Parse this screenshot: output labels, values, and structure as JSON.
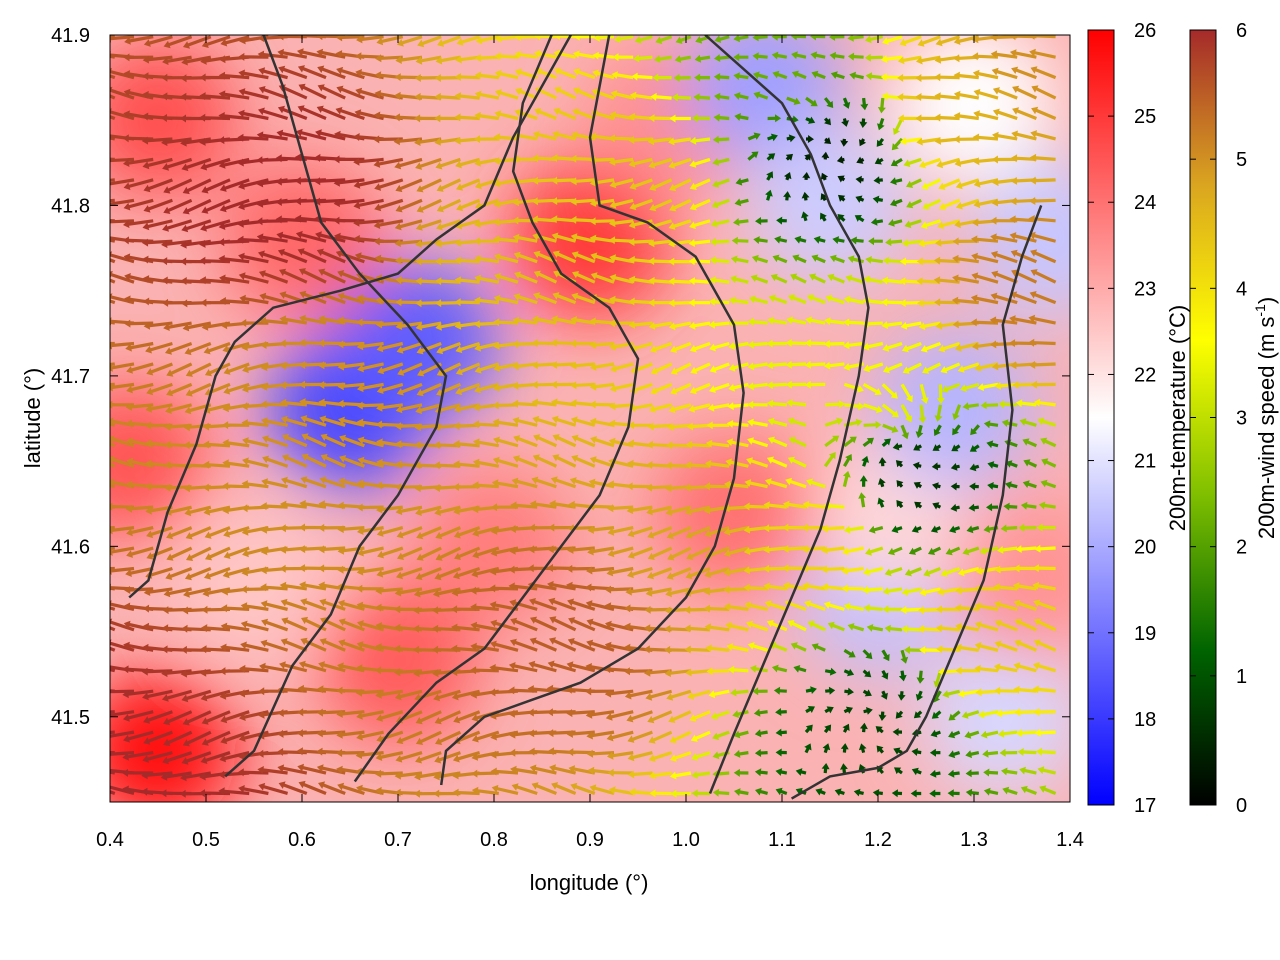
{
  "chart_data": {
    "type": "heatmap",
    "title": "",
    "xlabel": "longitude (°)",
    "ylabel": "latitude (°)",
    "xlim": [
      0.4,
      1.4
    ],
    "ylim": [
      41.45,
      41.9
    ],
    "x_ticks": [
      0.4,
      0.5,
      0.6,
      0.7,
      0.8,
      0.9,
      1.0,
      1.1,
      1.2,
      1.3,
      1.4
    ],
    "x_tick_labels": [
      "0.4",
      "0.5",
      "0.6",
      "0.7",
      "0.8",
      "0.9",
      "1.0",
      "1.1",
      "1.2",
      "1.3",
      "1.4"
    ],
    "y_ticks": [
      41.5,
      41.6,
      41.7,
      41.8,
      41.9
    ],
    "y_tick_labels": [
      "41.5",
      "41.6",
      "41.7",
      "41.8",
      "41.9"
    ],
    "grid": false,
    "layers": {
      "background_field": "200m-temperature",
      "vectors": "200m-wind",
      "contours": "terrain"
    },
    "temperature_colorbar": {
      "label": "200m-temperature (°C)",
      "range": [
        17,
        26
      ],
      "ticks": [
        "17",
        "18",
        "19",
        "20",
        "21",
        "22",
        "23",
        "24",
        "25",
        "26"
      ],
      "colors": [
        "#0000ff",
        "#ffffff",
        "#ff0000"
      ]
    },
    "wind_colorbar": {
      "label_main": "200m-wind speed (m s",
      "label_exp": "-1",
      "label_end": ")",
      "range": [
        0,
        6
      ],
      "ticks": [
        "0",
        "1",
        "2",
        "3",
        "4",
        "5",
        "6"
      ],
      "colors": [
        "#000000",
        "#006400",
        "#7fbf00",
        "#ffff00",
        "#daa520",
        "#a52a2a"
      ]
    },
    "temperature_regions": [
      {
        "lon": 0.45,
        "lat": 41.48,
        "temp": 25.8
      },
      {
        "lon": 0.42,
        "lat": 41.65,
        "temp": 24.5
      },
      {
        "lon": 0.45,
        "lat": 41.85,
        "temp": 24.6
      },
      {
        "lon": 0.55,
        "lat": 41.58,
        "temp": 22.5
      },
      {
        "lon": 0.65,
        "lat": 41.68,
        "temp": 18.2
      },
      {
        "lon": 0.72,
        "lat": 41.72,
        "temp": 18.6
      },
      {
        "lon": 0.6,
        "lat": 41.78,
        "temp": 24.2
      },
      {
        "lon": 0.8,
        "lat": 41.6,
        "temp": 23.8
      },
      {
        "lon": 0.9,
        "lat": 41.78,
        "temp": 25.0
      },
      {
        "lon": 0.98,
        "lat": 41.85,
        "temp": 23.5
      },
      {
        "lon": 1.08,
        "lat": 41.87,
        "temp": 19.8
      },
      {
        "lon": 1.15,
        "lat": 41.8,
        "temp": 20.6
      },
      {
        "lon": 1.05,
        "lat": 41.62,
        "temp": 24.0
      },
      {
        "lon": 1.2,
        "lat": 41.57,
        "temp": 20.4
      },
      {
        "lon": 1.22,
        "lat": 41.62,
        "temp": 22.2
      },
      {
        "lon": 1.28,
        "lat": 41.68,
        "temp": 20.2
      },
      {
        "lon": 1.33,
        "lat": 41.5,
        "temp": 20.8
      },
      {
        "lon": 1.38,
        "lat": 41.78,
        "temp": 20.5
      },
      {
        "lon": 1.3,
        "lat": 41.86,
        "temp": 21.5
      },
      {
        "lon": 1.36,
        "lat": 41.58,
        "temp": 23.4
      },
      {
        "lon": 0.7,
        "lat": 41.53,
        "temp": 24.4
      }
    ],
    "wind_speed_regions": [
      {
        "lon": 0.4,
        "lat": 41.45,
        "speed": 6.0
      },
      {
        "lon": 0.6,
        "lat": 41.8,
        "speed": 6.0
      },
      {
        "lon": 0.65,
        "lat": 41.69,
        "speed": 5.0
      },
      {
        "lon": 0.85,
        "lat": 41.76,
        "speed": 4.5
      },
      {
        "lon": 0.95,
        "lat": 41.82,
        "speed": 4.4
      },
      {
        "lon": 0.9,
        "lat": 41.55,
        "speed": 5.5
      },
      {
        "lon": 1.02,
        "lat": 41.6,
        "speed": 4.8
      },
      {
        "lon": 1.1,
        "lat": 41.88,
        "speed": 2.2
      },
      {
        "lon": 1.15,
        "lat": 41.83,
        "speed": 0.4
      },
      {
        "lon": 1.2,
        "lat": 41.7,
        "speed": 3.5
      },
      {
        "lon": 1.24,
        "lat": 41.64,
        "speed": 0.6
      },
      {
        "lon": 1.2,
        "lat": 41.5,
        "speed": 0.8
      },
      {
        "lon": 1.13,
        "lat": 41.6,
        "speed": 4.2
      },
      {
        "lon": 1.33,
        "lat": 41.55,
        "speed": 4.3
      },
      {
        "lon": 1.37,
        "lat": 41.75,
        "speed": 5.2
      },
      {
        "lon": 1.3,
        "lat": 41.86,
        "speed": 4.6
      },
      {
        "lon": 1.38,
        "lat": 41.88,
        "speed": 5.0
      }
    ],
    "wind_flow": {
      "pattern": "dominant westward flow over the western half, weakening and rotating into convergence zones near longitude 1.15–1.3",
      "calm_centers": [
        {
          "lon": 1.15,
          "lat": 41.83
        },
        {
          "lon": 1.22,
          "lat": 41.66
        },
        {
          "lon": 1.2,
          "lat": 41.5
        }
      ]
    },
    "contours": [
      [
        [
          0.52,
          41.465
        ],
        [
          0.55,
          41.48
        ],
        [
          0.59,
          41.53
        ],
        [
          0.63,
          41.56
        ],
        [
          0.66,
          41.6
        ],
        [
          0.7,
          41.63
        ],
        [
          0.74,
          41.67
        ],
        [
          0.75,
          41.7
        ],
        [
          0.71,
          41.73
        ],
        [
          0.66,
          41.76
        ],
        [
          0.62,
          41.79
        ],
        [
          0.6,
          41.83
        ],
        [
          0.58,
          41.87
        ],
        [
          0.56,
          41.9
        ]
      ],
      [
        [
          0.42,
          41.57
        ],
        [
          0.44,
          41.58
        ],
        [
          0.46,
          41.62
        ],
        [
          0.49,
          41.66
        ],
        [
          0.51,
          41.7
        ],
        [
          0.53,
          41.72
        ],
        [
          0.57,
          41.74
        ],
        [
          0.64,
          41.75
        ],
        [
          0.7,
          41.76
        ],
        [
          0.74,
          41.78
        ],
        [
          0.79,
          41.8
        ],
        [
          0.82,
          41.84
        ],
        [
          0.85,
          41.87
        ],
        [
          0.88,
          41.9
        ]
      ],
      [
        [
          0.655,
          41.462
        ],
        [
          0.69,
          41.49
        ],
        [
          0.74,
          41.52
        ],
        [
          0.79,
          41.54
        ],
        [
          0.83,
          41.57
        ],
        [
          0.87,
          41.6
        ],
        [
          0.91,
          41.63
        ],
        [
          0.94,
          41.67
        ],
        [
          0.95,
          41.71
        ],
        [
          0.92,
          41.74
        ],
        [
          0.87,
          41.76
        ],
        [
          0.84,
          41.79
        ],
        [
          0.82,
          41.82
        ],
        [
          0.83,
          41.86
        ],
        [
          0.86,
          41.9
        ]
      ],
      [
        [
          0.745,
          41.46
        ],
        [
          0.75,
          41.48
        ],
        [
          0.79,
          41.5
        ],
        [
          0.84,
          41.51
        ],
        [
          0.89,
          41.52
        ],
        [
          0.95,
          41.54
        ],
        [
          1.0,
          41.57
        ],
        [
          1.03,
          41.6
        ],
        [
          1.05,
          41.64
        ],
        [
          1.06,
          41.69
        ],
        [
          1.05,
          41.73
        ],
        [
          1.01,
          41.77
        ],
        [
          0.96,
          41.79
        ],
        [
          0.91,
          41.8
        ],
        [
          0.9,
          41.84
        ],
        [
          0.92,
          41.9
        ]
      ],
      [
        [
          1.025,
          41.455
        ],
        [
          1.05,
          41.49
        ],
        [
          1.08,
          41.53
        ],
        [
          1.11,
          41.57
        ],
        [
          1.14,
          41.61
        ],
        [
          1.16,
          41.65
        ],
        [
          1.18,
          41.7
        ],
        [
          1.19,
          41.74
        ],
        [
          1.18,
          41.77
        ],
        [
          1.15,
          41.8
        ],
        [
          1.13,
          41.83
        ],
        [
          1.1,
          41.86
        ],
        [
          1.06,
          41.88
        ],
        [
          1.02,
          41.9
        ]
      ],
      [
        [
          1.11,
          41.452
        ],
        [
          1.15,
          41.465
        ],
        [
          1.2,
          41.47
        ],
        [
          1.23,
          41.48
        ],
        [
          1.25,
          41.5
        ],
        [
          1.28,
          41.54
        ],
        [
          1.31,
          41.58
        ],
        [
          1.33,
          41.63
        ],
        [
          1.34,
          41.68
        ],
        [
          1.33,
          41.73
        ],
        [
          1.35,
          41.77
        ],
        [
          1.37,
          41.8
        ]
      ]
    ]
  }
}
